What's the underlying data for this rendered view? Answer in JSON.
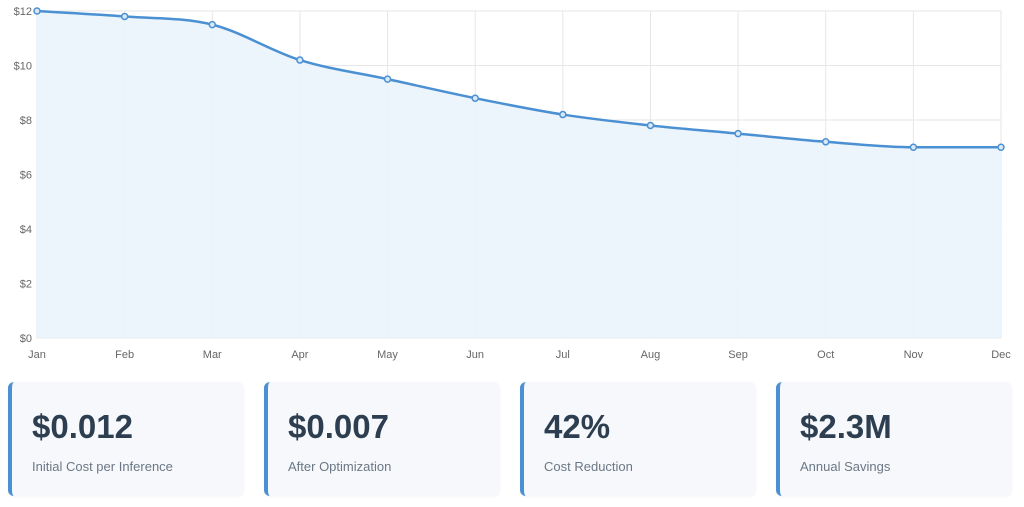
{
  "chart_data": {
    "type": "area",
    "categories": [
      "Jan",
      "Feb",
      "Mar",
      "Apr",
      "May",
      "Jun",
      "Jul",
      "Aug",
      "Sep",
      "Oct",
      "Nov",
      "Dec"
    ],
    "series": [
      {
        "values": [
          12,
          11.8,
          11.5,
          10.2,
          9.5,
          8.8,
          8.2,
          7.8,
          7.5,
          7.2,
          7.0,
          7.0
        ]
      }
    ],
    "ylim": [
      0,
      12
    ],
    "yticks": [
      0,
      2,
      4,
      6,
      8,
      10,
      12
    ],
    "ytick_labels": [
      "$0",
      "$2",
      "$4",
      "$6",
      "$8",
      "$10",
      "$12"
    ],
    "grid": true,
    "colors": {
      "line": "#4a90d2",
      "fill": "#eaf3fc",
      "grid": "#e6e6e6"
    }
  },
  "cards": [
    {
      "value": "$0.012",
      "label": "Initial Cost per Inference"
    },
    {
      "value": "$0.007",
      "label": "After Optimization"
    },
    {
      "value": "42%",
      "label": "Cost Reduction"
    },
    {
      "value": "$2.3M",
      "label": "Annual Savings"
    }
  ],
  "accent_color": "#4a90d2"
}
